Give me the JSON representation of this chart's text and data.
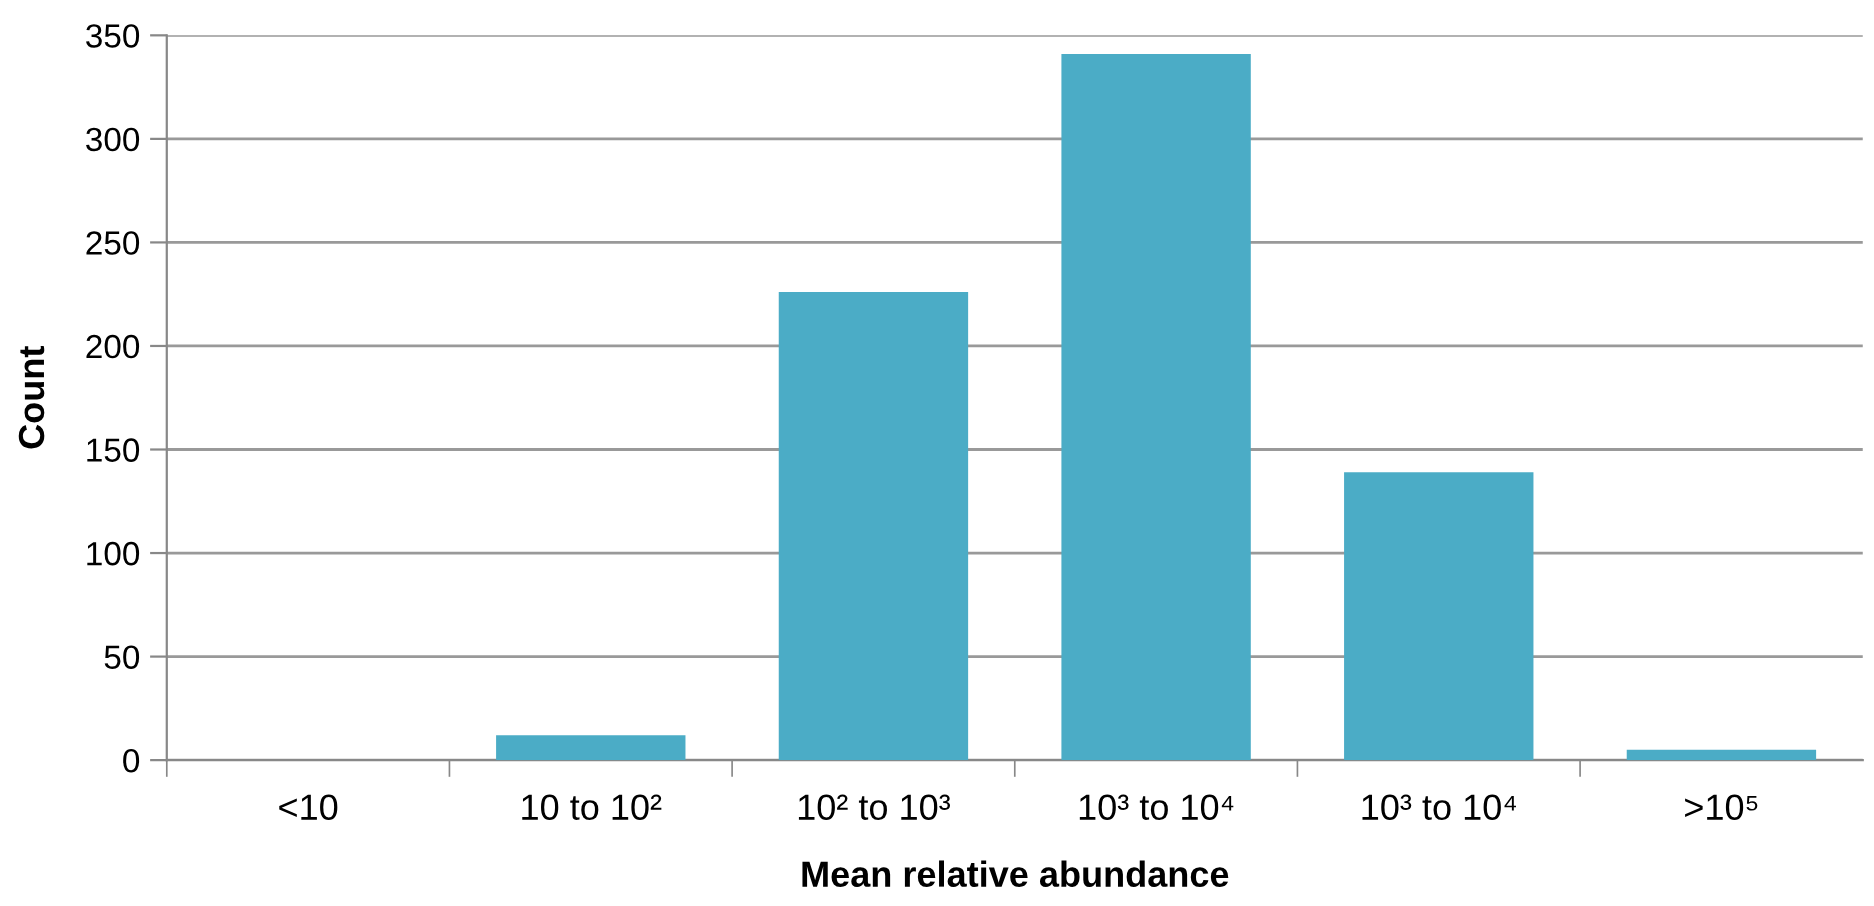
{
  "chart_data": {
    "type": "bar",
    "xlabel": "Mean relative abundance",
    "ylabel": "Count",
    "categories": [
      "<10",
      "10 to 10²",
      "10² to 10³",
      "10³ to 10⁴",
      "10³ to 10⁴",
      ">10⁵"
    ],
    "values": [
      0,
      12,
      226,
      341,
      139,
      5
    ],
    "color": "#4bacc6",
    "ylim": [
      0,
      350
    ],
    "yticks": [
      0,
      50,
      100,
      150,
      200,
      250,
      300,
      350
    ],
    "grid": "y"
  }
}
